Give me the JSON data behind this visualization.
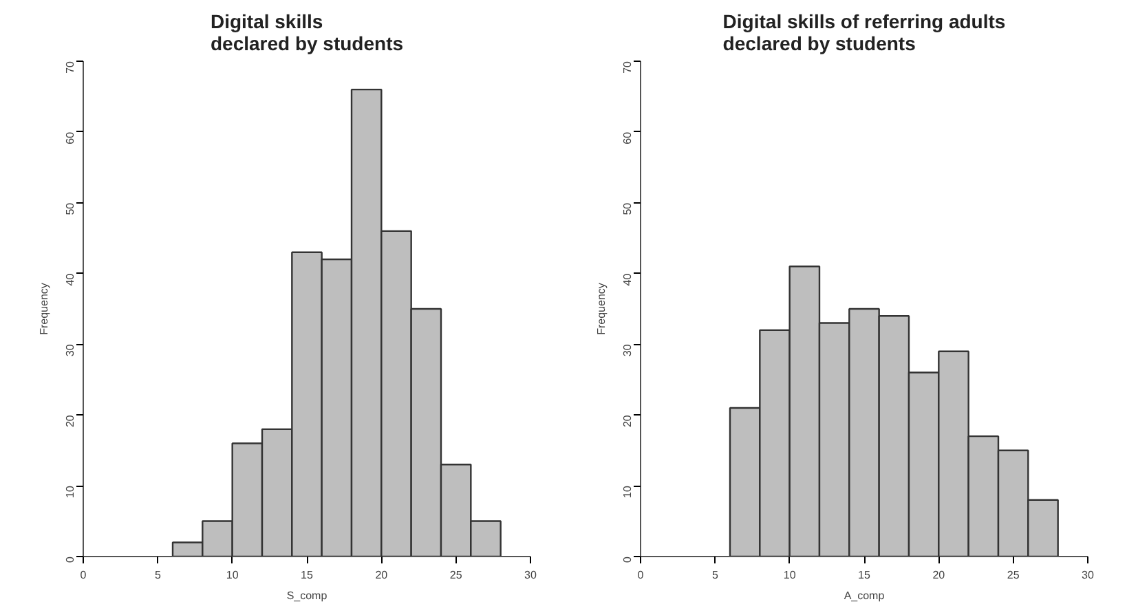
{
  "chart_data": [
    {
      "type": "histogram",
      "title": "Digital skills\ndeclared by students",
      "xlabel": "S_comp",
      "ylabel": "Frequency",
      "bins": [
        6,
        8,
        10,
        12,
        14,
        16,
        18,
        20,
        22,
        24,
        26,
        28
      ],
      "values": [
        2,
        5,
        16,
        18,
        43,
        42,
        66,
        46,
        35,
        13,
        5
      ],
      "color": "#bebebe",
      "xlim": [
        0,
        30
      ],
      "xticks": [
        0,
        5,
        10,
        15,
        20,
        25,
        30
      ],
      "ylim": [
        0,
        70
      ],
      "yticks": [
        0,
        10,
        20,
        30,
        40,
        50,
        60,
        70
      ],
      "grid": false
    },
    {
      "type": "histogram",
      "title": "Digital skills of referring adults\ndeclared by students",
      "xlabel": "A_comp",
      "ylabel": "Frequency",
      "bins": [
        6,
        8,
        10,
        12,
        14,
        16,
        18,
        20,
        22,
        24,
        26,
        28
      ],
      "values": [
        21,
        32,
        41,
        33,
        35,
        34,
        26,
        29,
        17,
        15,
        8
      ],
      "color": "#bebebe",
      "xlim": [
        0,
        30
      ],
      "xticks": [
        0,
        5,
        10,
        15,
        20,
        25,
        30
      ],
      "ylim": [
        0,
        70
      ],
      "yticks": [
        0,
        10,
        20,
        30,
        40,
        50,
        60,
        70
      ],
      "grid": false
    }
  ]
}
